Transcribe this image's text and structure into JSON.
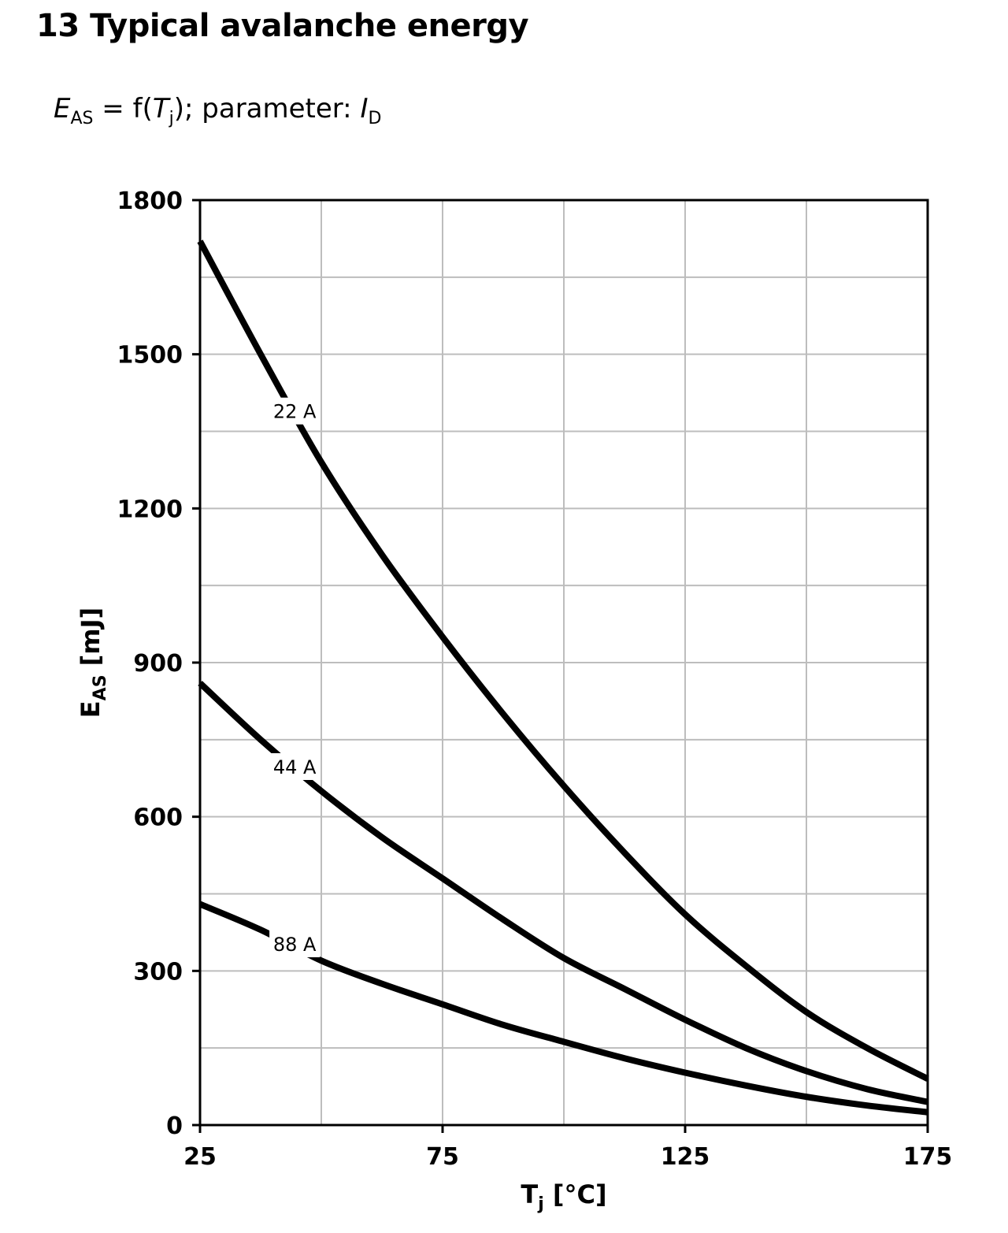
{
  "page": {
    "title": "13 Typical avalanche energy",
    "subtitle": {
      "e": "E",
      "e_sub": "AS",
      "mid": " = f(",
      "t": "T",
      "t_sub": "j",
      "end": "); parameter: ",
      "i": "I",
      "i_sub": "D"
    }
  },
  "chart_data": {
    "type": "line",
    "title": "",
    "xlabel": {
      "main": "T",
      "sub": "j",
      "unit": " [°C]"
    },
    "ylabel": {
      "main": "E",
      "sub": "AS",
      "unit": " [mJ]"
    },
    "xlim": [
      25,
      175
    ],
    "ylim": [
      0,
      1800
    ],
    "x_ticks": [
      25,
      75,
      125,
      175
    ],
    "y_ticks": [
      0,
      300,
      600,
      900,
      1200,
      1500,
      1800
    ],
    "x_minor_grid": [
      50,
      100,
      150
    ],
    "y_minor_grid": [
      150,
      450,
      750,
      1050,
      1350,
      1650
    ],
    "grid": true,
    "legend": "none",
    "colors": {
      "curve": "#000000",
      "grid": "#bdbdbd",
      "frame": "#000000"
    },
    "series": [
      {
        "name": "22 A",
        "x": [
          25,
          37.5,
          50,
          62.5,
          75,
          87.5,
          100,
          112.5,
          125,
          137.5,
          150,
          162.5,
          175
        ],
        "y": [
          1720,
          1500,
          1290,
          1110,
          950,
          800,
          660,
          530,
          410,
          310,
          220,
          150,
          90
        ],
        "label_at": [
          44.5,
          1385
        ]
      },
      {
        "name": "44 A",
        "x": [
          25,
          37.5,
          50,
          62.5,
          75,
          87.5,
          100,
          112.5,
          125,
          137.5,
          150,
          162.5,
          175
        ],
        "y": [
          860,
          750,
          650,
          560,
          480,
          400,
          325,
          265,
          205,
          150,
          105,
          70,
          45
        ],
        "label_at": [
          44.5,
          693
        ]
      },
      {
        "name": "88 A",
        "x": [
          25,
          37.5,
          50,
          62.5,
          75,
          87.5,
          100,
          112.5,
          125,
          137.5,
          150,
          162.5,
          175
        ],
        "y": [
          430,
          380,
          320,
          275,
          235,
          195,
          162,
          130,
          102,
          77,
          55,
          38,
          25
        ],
        "label_at": [
          44.5,
          348
        ]
      }
    ]
  }
}
